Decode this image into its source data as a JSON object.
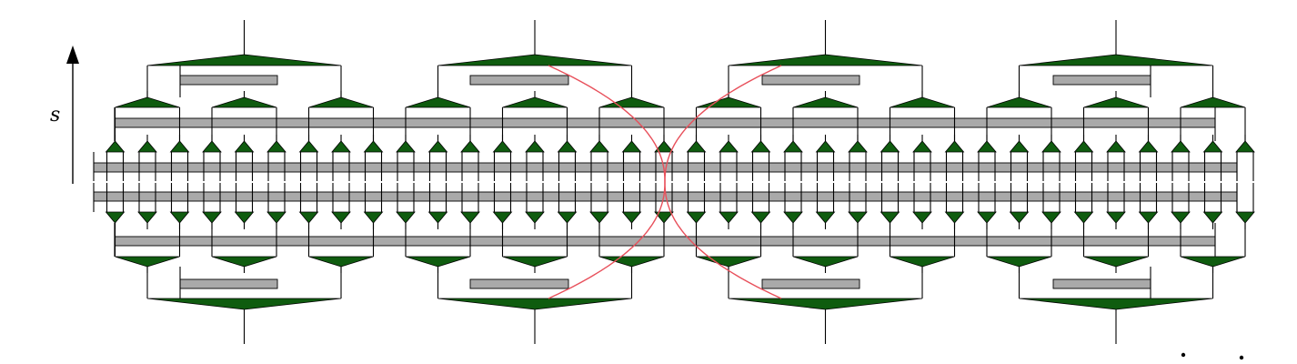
{
  "axis": {
    "label": "s"
  },
  "colors": {
    "tensor_fill": "#0f5c0f",
    "bond_fill": "#a9a9a9",
    "line": "#000000",
    "highlight": "#e8505b"
  },
  "structure": {
    "type": "MERA tensor network (mirrored top/bottom)",
    "sites": 36,
    "layers": 3,
    "layer_tensor_counts": [
      36,
      12,
      4
    ],
    "highlighted_light_cone": true
  }
}
